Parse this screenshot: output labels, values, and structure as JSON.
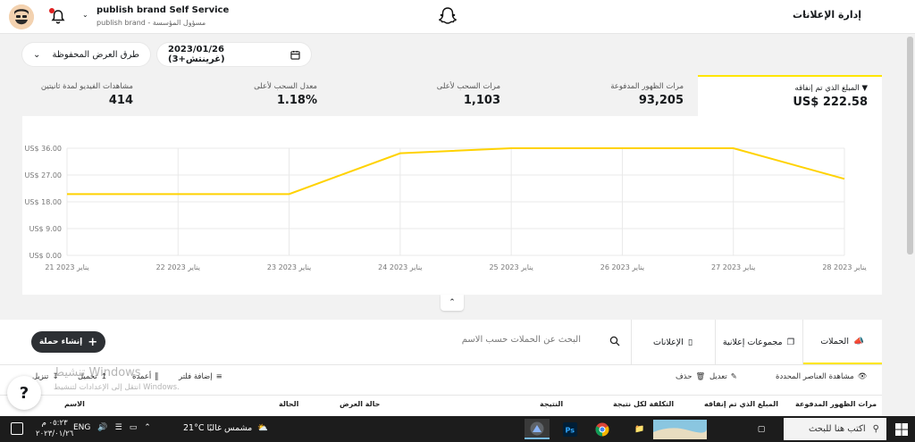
{
  "header": {
    "title": "إدارة الإعلانات",
    "brand_name": "publish brand Self Service",
    "brand_sub": "publish brand - مسؤول المؤسسة"
  },
  "filters": {
    "date_range": "2023/01/26 (غرينتش+3)",
    "saved_views": "طرق العرض المحفوظة"
  },
  "metrics": [
    {
      "label": "المبلغ الذي تم إنفاقه",
      "value": "US$ 222.58",
      "active": true
    },
    {
      "label": "مرات الظهور المدفوعة",
      "value": "93,205"
    },
    {
      "label": "مرات السحب لأعلى",
      "value": "1,103"
    },
    {
      "label": "معدل السحب لأعلى",
      "value": "1.18%"
    },
    {
      "label": "مشاهدات الفيديو لمدة ثانيتين",
      "value": "414"
    }
  ],
  "chart_data": {
    "type": "line",
    "x": [
      "21 يناير 2023",
      "22 يناير 2023",
      "23 يناير 2023",
      "24 يناير 2023",
      "25 يناير 2023",
      "26 يناير 2023",
      "27 يناير 2023",
      "28 يناير 2023"
    ],
    "y_ticks": [
      "US$ 0.00",
      "US$ 9.00",
      "US$ 18.00",
      "US$ 27.00",
      "US$ 36.00"
    ],
    "ylim": [
      0,
      36
    ],
    "series": [
      {
        "values": [
          20.6,
          20.6,
          20.6,
          34.3,
          36.0,
          36.0,
          36.0,
          25.7
        ]
      }
    ],
    "line_color": "#ffd200",
    "grid": true
  },
  "tabs": {
    "campaigns": "الحملات",
    "ad_sets": "مجموعات إعلانية",
    "ads": "الإعلانات"
  },
  "search_placeholder": "البحث عن الحملات حسب الاسم",
  "create_campaign": "إنشاء حملة",
  "toolbar": {
    "view_selected": "مشاهدة العناصر المحددة",
    "edit": "تعديل",
    "delete": "حذف",
    "add_filter": "إضافة فلتر",
    "columns": "أعمدة",
    "download": "تحميل",
    "export": "تنزيل"
  },
  "table_headers": {
    "impressions": "مرات الظهور المدفوعة",
    "spend": "المبلغ الذي تم إنفاقه",
    "cost_per_result": "التكلفة لكل نتيجة",
    "result": "النتيجة",
    "delivery": "حالة العرض",
    "status": "الحالة",
    "name": "الاسم"
  },
  "watermark": {
    "line1": "تنشيط Windows",
    "line2": "انتقل إلى الإعدادات لتنشيط Windows."
  },
  "taskbar": {
    "search": "اكتب هنا للبحث",
    "weather": "21°C مشمس غالبًا",
    "lang": "ENG",
    "time": "٠٥:٢٣ م",
    "date": "٢٠٢٣/٠١/٢٦"
  }
}
